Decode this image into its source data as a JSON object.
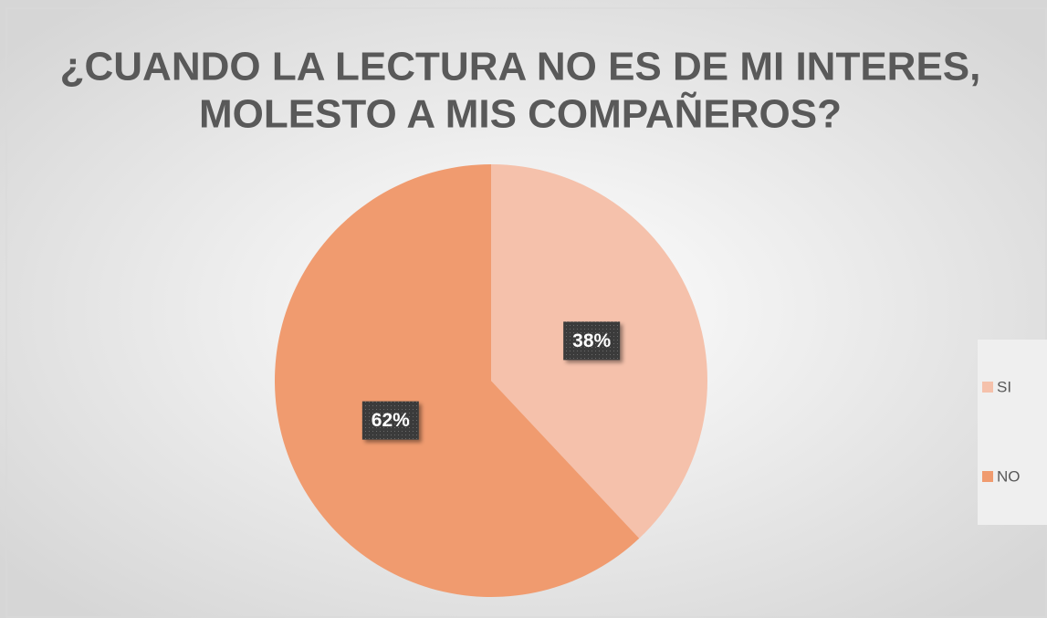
{
  "chart_data": {
    "type": "pie",
    "title": [
      "¿CUANDO LA LECTURA NO ES DE MI INTERES,",
      "MOLESTO A MIS COMPAÑEROS?"
    ],
    "categories": [
      "SI",
      "NO"
    ],
    "values": [
      38,
      62
    ],
    "value_labels": [
      "38%",
      "62%"
    ],
    "colors": [
      "#f5c1ab",
      "#f09b6f"
    ],
    "legend": "right"
  }
}
